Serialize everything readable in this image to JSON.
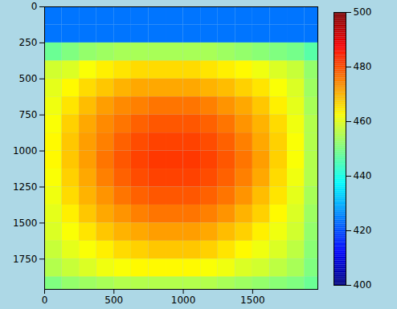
{
  "chart_data": {
    "type": "heatmap",
    "x_edges": [
      0,
      125,
      250,
      375,
      500,
      625,
      750,
      875,
      1000,
      1125,
      1250,
      1375,
      1500,
      1625,
      1750,
      1875,
      2000
    ],
    "y_edges": [
      0,
      125,
      250,
      375,
      500,
      625,
      750,
      875,
      1000,
      1125,
      1250,
      1375,
      1500,
      1625,
      1750,
      1875,
      2000
    ],
    "cells": [
      [
        424,
        424,
        424,
        424,
        424,
        424,
        424,
        424,
        424,
        424,
        424,
        424,
        424,
        424,
        424,
        424
      ],
      [
        424,
        424,
        424,
        424,
        424,
        424,
        424,
        424,
        424,
        424,
        424,
        424,
        424,
        424,
        424,
        424
      ],
      [
        448,
        450,
        452,
        453,
        454,
        454,
        454,
        454,
        454,
        454,
        453,
        452,
        451,
        450,
        449,
        446
      ],
      [
        458,
        459,
        462,
        464,
        465,
        466,
        466,
        466,
        466,
        465,
        464,
        463,
        461,
        459,
        457,
        452
      ],
      [
        460,
        463,
        466,
        468,
        470,
        471,
        471,
        471,
        471,
        470,
        469,
        467,
        465,
        462,
        459,
        453
      ],
      [
        461,
        465,
        469,
        472,
        474,
        475,
        476,
        476,
        476,
        475,
        473,
        471,
        468,
        464,
        460,
        454
      ],
      [
        462,
        467,
        471,
        474,
        476,
        478,
        479,
        479,
        479,
        478,
        476,
        473,
        470,
        466,
        461,
        455
      ],
      [
        463,
        468,
        472,
        475,
        478,
        480,
        481,
        481,
        481,
        480,
        478,
        475,
        471,
        467,
        462,
        455
      ],
      [
        463,
        468,
        472,
        476,
        479,
        481,
        482,
        482,
        482,
        481,
        479,
        476,
        472,
        467,
        462,
        455
      ],
      [
        462,
        467,
        471,
        475,
        478,
        480,
        481,
        481,
        481,
        480,
        478,
        475,
        471,
        466,
        461,
        455
      ],
      [
        461,
        466,
        470,
        473,
        476,
        478,
        479,
        479,
        479,
        478,
        476,
        473,
        469,
        465,
        460,
        454
      ],
      [
        460,
        464,
        468,
        471,
        473,
        475,
        476,
        476,
        476,
        475,
        473,
        470,
        467,
        463,
        459,
        453
      ],
      [
        459,
        462,
        465,
        468,
        470,
        471,
        472,
        472,
        472,
        471,
        469,
        467,
        464,
        461,
        458,
        452
      ],
      [
        457,
        460,
        462,
        464,
        466,
        467,
        468,
        468,
        468,
        467,
        465,
        463,
        461,
        459,
        456,
        451
      ],
      [
        455,
        457,
        459,
        461,
        462,
        463,
        463,
        463,
        463,
        462,
        461,
        459,
        458,
        456,
        454,
        450
      ],
      [
        450,
        452,
        453,
        454,
        455,
        455,
        455,
        455,
        455,
        455,
        454,
        453,
        452,
        451,
        450,
        448
      ]
    ],
    "xlim": [
      0,
      1970
    ],
    "ylim": [
      1960,
      0
    ],
    "xticks": [
      0,
      500,
      1000,
      1500
    ],
    "yticks": [
      0,
      250,
      500,
      750,
      1000,
      1250,
      1500,
      1750
    ],
    "colorbar": {
      "range": [
        400,
        500
      ],
      "ticks": [
        400,
        420,
        440,
        460,
        480,
        500
      ]
    }
  }
}
